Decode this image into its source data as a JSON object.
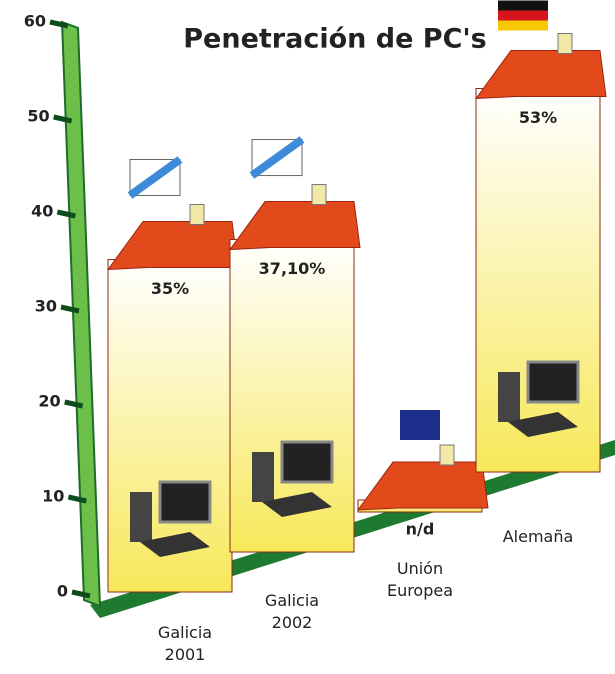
{
  "chart_data": {
    "type": "bar",
    "title": "Penetración de PC's",
    "categories": [
      "Galicia 2001",
      "Galicia 2002",
      "Unión Europea",
      "Alemaña"
    ],
    "values": [
      35,
      37.1,
      null,
      53
    ],
    "value_labels": [
      "35%",
      "37,10%",
      "n/d",
      "53%"
    ],
    "color": "#f7e85a",
    "ylim": [
      0,
      60
    ],
    "yticks": [
      0,
      10,
      20,
      30,
      40,
      50,
      60
    ]
  }
}
